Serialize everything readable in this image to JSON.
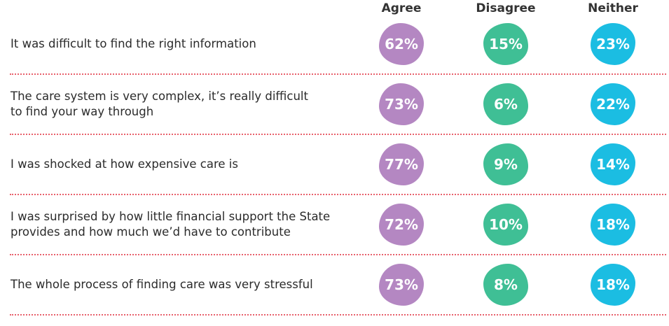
{
  "chart_data": {
    "type": "table",
    "columns": [
      "Agree",
      "Disagree",
      "Neither"
    ],
    "rows": [
      {
        "statement": "It was difficult to find the right information",
        "values": [
          "62%",
          "15%",
          "23%"
        ]
      },
      {
        "statement": "The care system is very complex, it’s really difficult\nto find your way through",
        "values": [
          "73%",
          "6%",
          "22%"
        ]
      },
      {
        "statement": "I was shocked at how expensive care is",
        "values": [
          "77%",
          "9%",
          "14%"
        ]
      },
      {
        "statement": "I was surprised by how little financial support the State\nprovides and how much we’d have to contribute",
        "values": [
          "72%",
          "10%",
          "18%"
        ]
      },
      {
        "statement": "The whole process of finding care was very stressful",
        "values": [
          "73%",
          "8%",
          "18%"
        ]
      }
    ]
  },
  "colors": {
    "agree": "#b487c2",
    "disagree": "#3fbf95",
    "neither": "#1bbde2",
    "divider": "#e8616c"
  }
}
